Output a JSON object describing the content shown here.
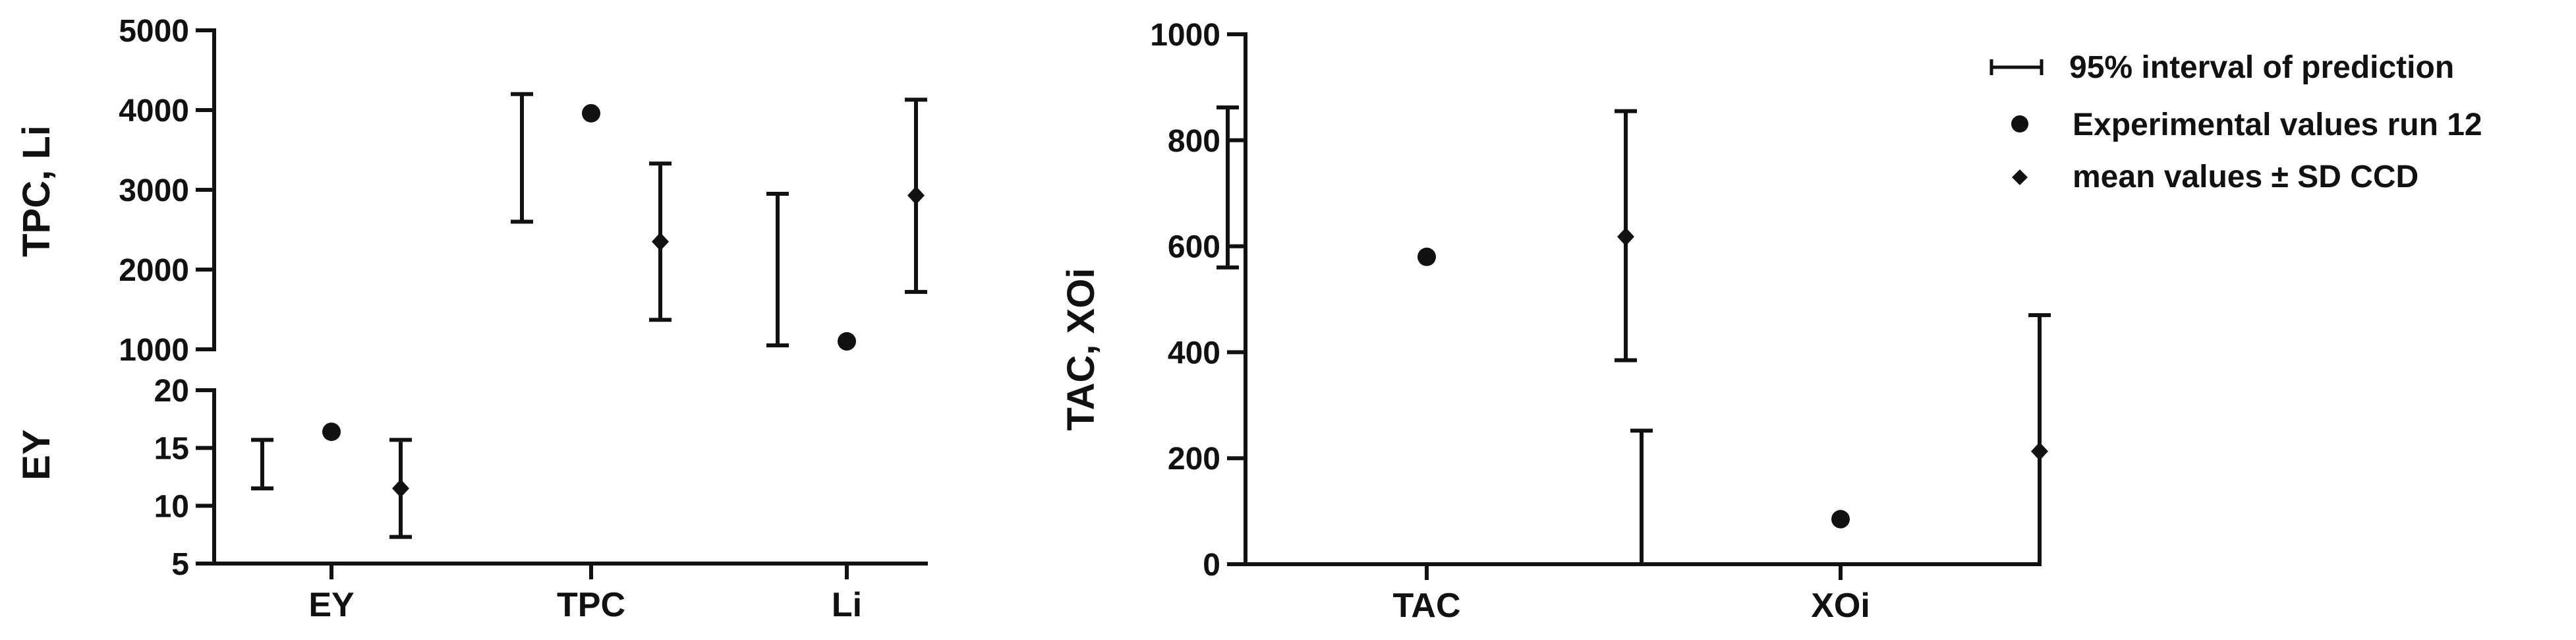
{
  "chart_data": [
    {
      "type": "scatter",
      "panel": "left-top",
      "ylabel": "TPC, Li",
      "ylim": [
        1000,
        5000
      ],
      "yticks": [
        1000,
        2000,
        3000,
        4000,
        5000
      ],
      "categories": [
        "EY",
        "TPC",
        "Li"
      ],
      "series": [
        {
          "name": "95% interval of prediction",
          "marker": "interval",
          "category": "TPC",
          "low": 2600,
          "high": 4200
        },
        {
          "name": "Experimental values run 12",
          "marker": "circle",
          "category": "TPC",
          "value": 3960
        },
        {
          "name": "mean values ± SD CCD",
          "marker": "diamond",
          "category": "TPC",
          "value": 2350,
          "low": 1370,
          "high": 3330
        },
        {
          "name": "95% interval of prediction",
          "marker": "interval",
          "category": "Li",
          "low": 1050,
          "high": 2950
        },
        {
          "name": "Experimental values run 12",
          "marker": "circle",
          "category": "Li",
          "value": 1100
        },
        {
          "name": "mean values ± SD CCD",
          "marker": "diamond",
          "category": "Li",
          "value": 2930,
          "low": 1720,
          "high": 4130
        }
      ]
    },
    {
      "type": "scatter",
      "panel": "left-bottom",
      "ylabel": "EY",
      "ylim": [
        5,
        20
      ],
      "yticks": [
        5,
        10,
        15,
        20
      ],
      "xticks": [
        "EY",
        "TPC",
        "Li"
      ],
      "series": [
        {
          "name": "95% interval of prediction",
          "marker": "interval",
          "category": "EY",
          "low": 11.5,
          "high": 15.7
        },
        {
          "name": "Experimental values run 12",
          "marker": "circle",
          "category": "EY",
          "value": 16.4
        },
        {
          "name": "mean values ± SD CCD",
          "marker": "diamond",
          "category": "EY",
          "value": 11.5,
          "low": 7.3,
          "high": 15.7
        }
      ]
    },
    {
      "type": "scatter",
      "panel": "right",
      "ylabel": "TAC, XOi",
      "ylim": [
        0,
        1000
      ],
      "yticks": [
        0,
        200,
        400,
        600,
        800,
        1000
      ],
      "xticks": [
        "TAC",
        "XOi"
      ],
      "series": [
        {
          "name": "95% interval of prediction",
          "marker": "interval",
          "category": "TAC",
          "low": 560,
          "high": 862
        },
        {
          "name": "Experimental values run 12",
          "marker": "circle",
          "category": "TAC",
          "value": 580
        },
        {
          "name": "mean values ± SD CCD",
          "marker": "diamond",
          "category": "TAC",
          "value": 618,
          "low": 385,
          "high": 855
        },
        {
          "name": "95% interval of prediction",
          "marker": "interval",
          "category": "XOi",
          "low": 0,
          "high": 252
        },
        {
          "name": "Experimental values run 12",
          "marker": "circle",
          "category": "XOi",
          "value": 85
        },
        {
          "name": "mean values ± SD CCD",
          "marker": "diamond",
          "category": "XOi",
          "value": 213,
          "low": 0,
          "high": 470
        }
      ]
    }
  ],
  "legend": {
    "position": "top-right",
    "items": [
      {
        "label": "95% interval of prediction",
        "marker": "interval"
      },
      {
        "label": "Experimental values run 12",
        "marker": "circle"
      },
      {
        "label": "mean values ± SD CCD",
        "marker": "diamond"
      }
    ]
  }
}
